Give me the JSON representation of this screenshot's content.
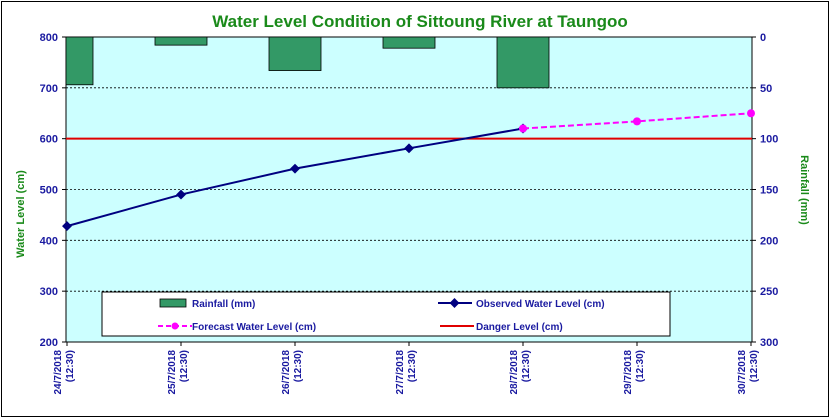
{
  "chart_data": {
    "type": "line+bar",
    "title": "Water Level Condition of Sittoung  River at  Taungoo",
    "ylabel_left": "Water Level (cm)",
    "ylabel_right": "Rainfall (mm)",
    "ylim_left": [
      200,
      800
    ],
    "ylim_right": [
      300,
      0
    ],
    "yticks_left": [
      "200",
      "300",
      "400",
      "500",
      "600",
      "700",
      "800"
    ],
    "yticks_right": [
      "300",
      "250",
      "200",
      "150",
      "100",
      "50",
      "0"
    ],
    "categories": [
      [
        "24/7/2018",
        "(12:30)"
      ],
      [
        "25/7/2018",
        "(12:30)"
      ],
      [
        "26/7/2018",
        "(12:30)"
      ],
      [
        "27/7/2018",
        "(12:30)"
      ],
      [
        "28/7/2018",
        "(12:30)"
      ],
      [
        "29/7/2018",
        "(12:30)"
      ],
      [
        "30/7/2018",
        "(12:30)"
      ]
    ],
    "series": [
      {
        "name": "Rainfall (mm)",
        "kind": "bar",
        "axis": "right",
        "color": "#339966",
        "values": [
          47,
          8,
          33,
          11,
          50,
          null,
          null
        ]
      },
      {
        "name": "Observed Water Level (cm)",
        "kind": "line",
        "axis": "left",
        "color": "#000080",
        "values": [
          428,
          490,
          541,
          581,
          620,
          null,
          null
        ]
      },
      {
        "name": "Forecast Water Level (cm)",
        "kind": "dashed-line",
        "axis": "left",
        "color": "#ff00ff",
        "values": [
          null,
          null,
          null,
          null,
          620,
          634,
          650
        ]
      },
      {
        "name": "Danger Level (cm)",
        "kind": "hline",
        "axis": "left",
        "color": "#e00000",
        "value": 600
      }
    ],
    "legend": {
      "placement": "bottom-inside",
      "entries": [
        "Rainfall (mm)",
        "Observed Water Level (cm)",
        "Forecast Water Level (cm)",
        "Danger Level (cm)"
      ]
    },
    "colors": {
      "plot_bg": "#ccffff",
      "grid": "#000000",
      "title": "#1a8a1a",
      "ticks": "#1a1aa0"
    }
  }
}
